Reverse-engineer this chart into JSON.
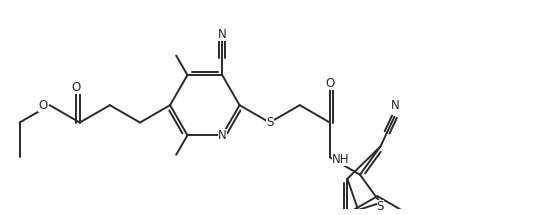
{
  "background_color": "#ffffff",
  "line_color": "#2a2a2a",
  "line_width": 1.4,
  "figsize": [
    5.39,
    2.15
  ],
  "dpi": 100,
  "xlim": [
    0,
    10.78
  ],
  "ylim": [
    0,
    4.3
  ]
}
